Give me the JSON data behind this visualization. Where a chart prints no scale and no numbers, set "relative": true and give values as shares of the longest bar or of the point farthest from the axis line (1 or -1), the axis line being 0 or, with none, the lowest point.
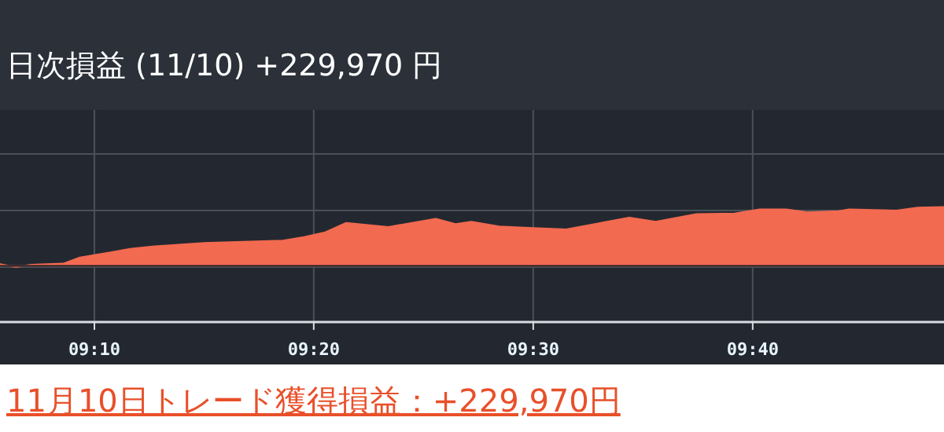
{
  "chart_data": {
    "type": "area",
    "title": "日次損益 (11/10) +229,970 円",
    "annotations": [
      "11月10日トレード獲得損益：+229,970円"
    ],
    "x": [
      9.095,
      9.107,
      9.119,
      9.143,
      9.155,
      9.179,
      9.194,
      9.211,
      9.25,
      9.31,
      9.326,
      9.342,
      9.358,
      9.39,
      9.426,
      9.441,
      9.453,
      9.474,
      9.493,
      9.525,
      9.573,
      9.593,
      9.624,
      9.653,
      9.672,
      9.692,
      9.708,
      9.732,
      9.74,
      9.776,
      9.792,
      9.812
    ],
    "values": [
      0.03,
      -0.02,
      0.02,
      0.04,
      0.14,
      0.23,
      0.29,
      0.33,
      0.39,
      0.43,
      0.49,
      0.57,
      0.73,
      0.66,
      0.8,
      0.71,
      0.75,
      0.67,
      0.65,
      0.62,
      0.82,
      0.75,
      0.88,
      0.89,
      0.96,
      0.96,
      0.91,
      0.93,
      0.96,
      0.94,
      0.99,
      1.0
    ],
    "color": "#f26a50",
    "relative": true,
    "grid": true,
    "xlim": [
      9.095,
      9.812
    ],
    "xticks": [
      {
        "value": 9.1667,
        "label": "09:10"
      },
      {
        "value": 9.3333,
        "label": "09:20"
      },
      {
        "value": 9.5,
        "label": "09:30"
      },
      {
        "value": 9.6667,
        "label": "09:40"
      }
    ]
  }
}
